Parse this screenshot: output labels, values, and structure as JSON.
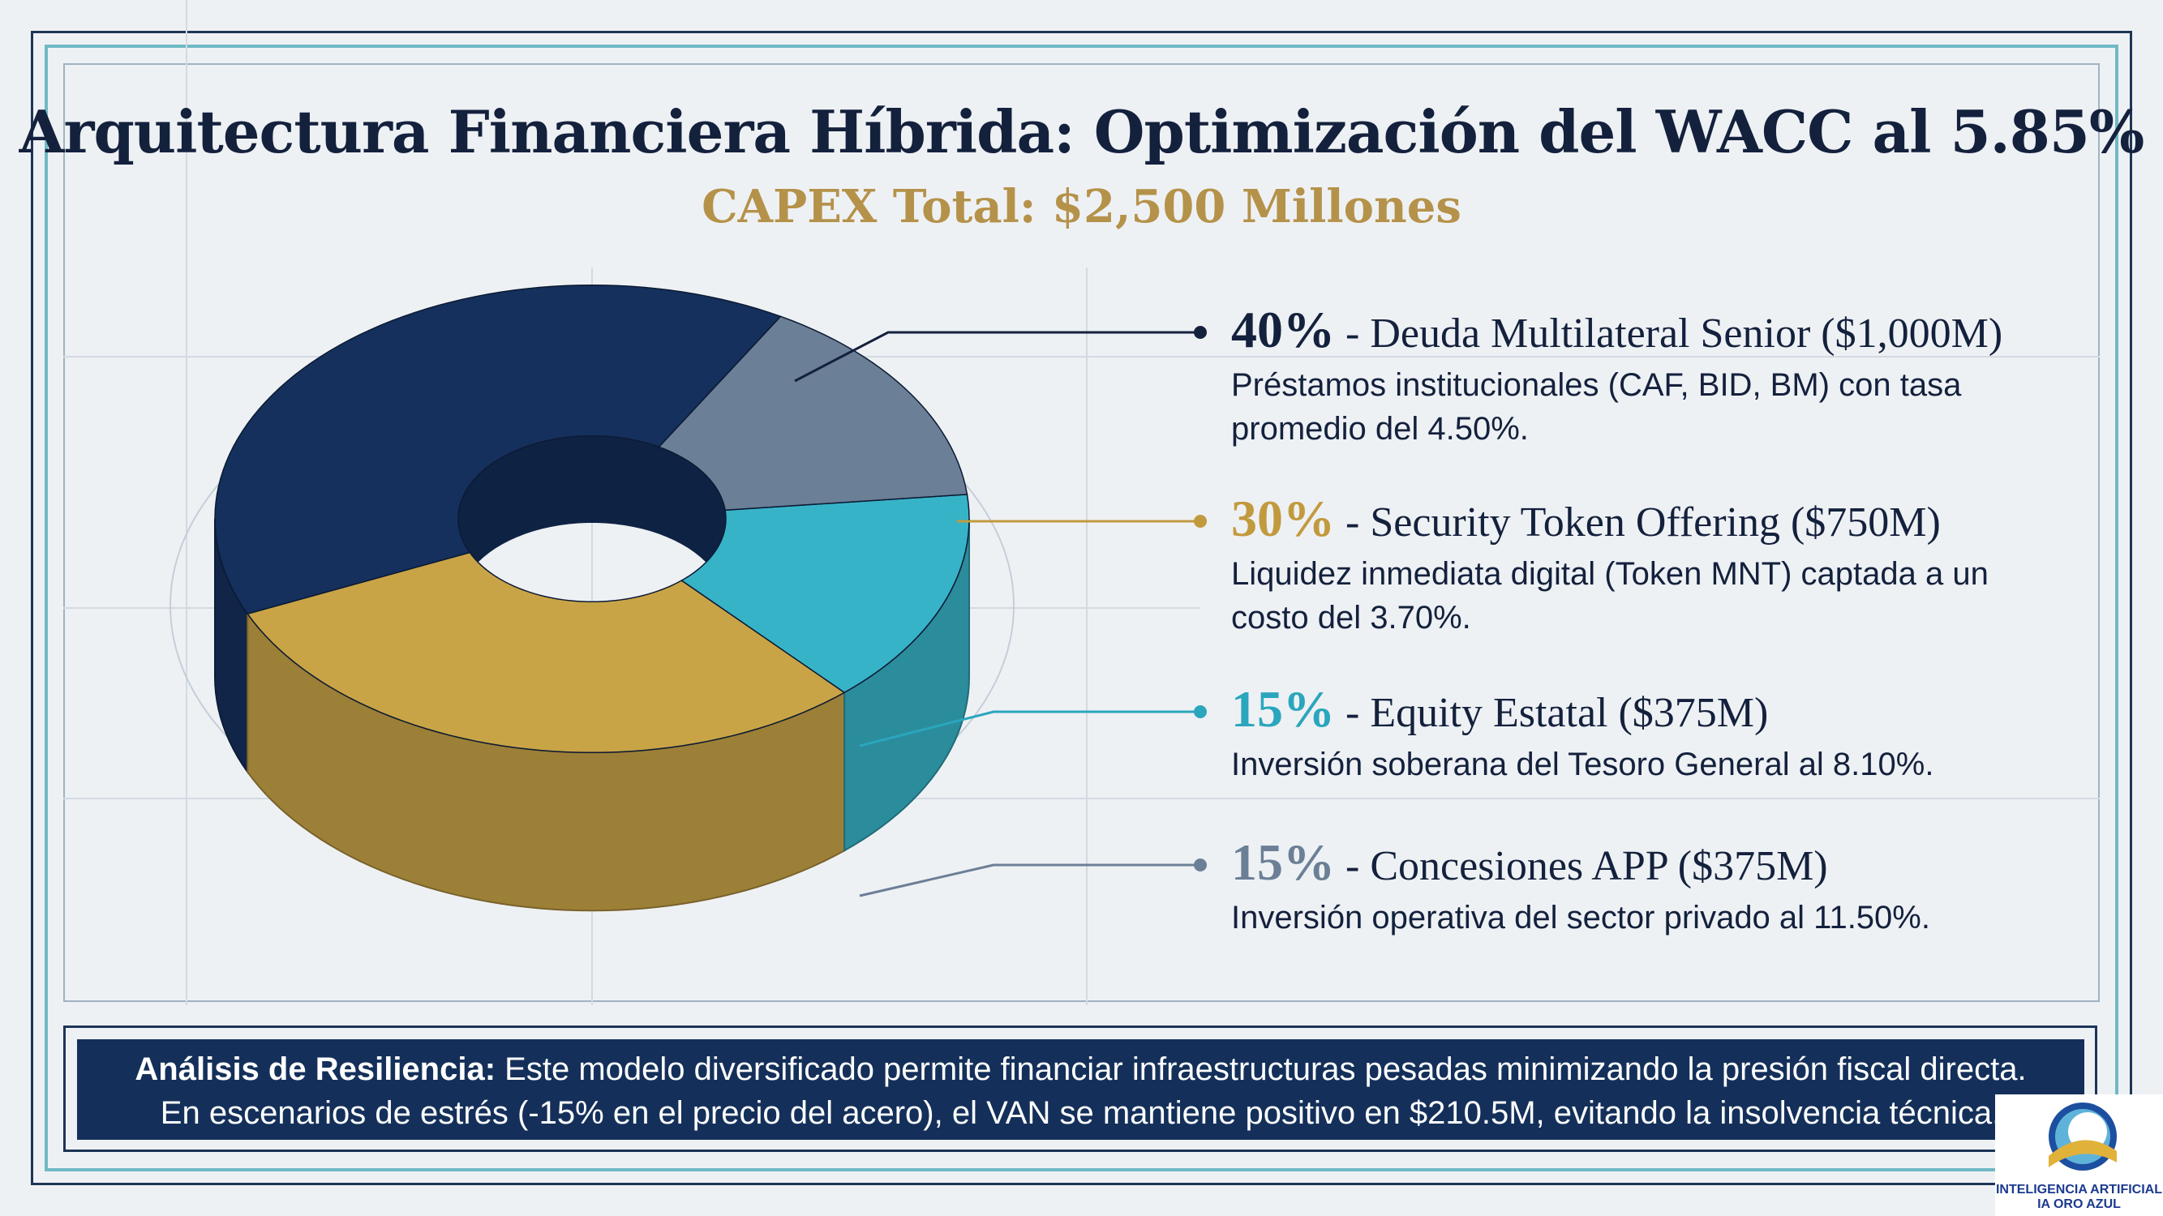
{
  "title": "Arquitectura Financiera Híbrida: Optimización del WACC al 5.85%",
  "subtitle": "CAPEX Total: $2,500 Millones",
  "chart_data": {
    "type": "pie",
    "style": "3d-donut",
    "slices": [
      {
        "percent": 40,
        "label": "Deuda Multilateral Senior ($1,000M)",
        "value_musd": 1000,
        "color": "#15305c",
        "description": "Préstamos institucionales (CAF, BID, BM) con tasa promedio del 4.50%."
      },
      {
        "percent": 30,
        "label": "Security Token Offering ($750M)",
        "value_musd": 750,
        "color": "#c9a447",
        "description": "Liquidez inmediata digital (Token MNT) captada a un costo del 3.70%."
      },
      {
        "percent": 15,
        "label": "Equity Estatal ($375M)",
        "value_musd": 375,
        "color": "#37b3c8",
        "description": "Inversión soberana del Tesoro General al 8.10%."
      },
      {
        "percent": 15,
        "label": "Concesiones APP ($375M)",
        "value_musd": 375,
        "color": "#6b7f96",
        "description": "Inversión operativa del sector privado al 11.50%."
      }
    ],
    "legend_placement": "right"
  },
  "legend": [
    {
      "pct": "40%",
      "head": " - Deuda Multilateral Senior ($1,000M)",
      "desc": "Préstamos institucionales (CAF, BID, BM) con tasa promedio del 4.50%.",
      "pct_color": "#14213d"
    },
    {
      "pct": "30%",
      "head": " - Security Token Offering ($750M)",
      "desc": "Liquidez inmediata digital (Token MNT) captada a un costo del 3.70%.",
      "pct_color": "#c29a3e"
    },
    {
      "pct": "15%",
      "head": " - Equity Estatal ($375M)",
      "desc": "Inversión soberana del Tesoro General al 8.10%.",
      "pct_color": "#2aa6bd"
    },
    {
      "pct": "15%",
      "head": " - Concesiones APP ($375M)",
      "desc": "Inversión operativa del sector privado al 11.50%.",
      "pct_color": "#6b7f96"
    }
  ],
  "banner": {
    "label": "Análisis de Resiliencia:",
    "line1": " Este modelo diversificado permite financiar infraestructuras pesadas minimizando la presión fiscal directa.",
    "line2": "En escenarios de estrés (-15% en el precio del acero), el VAN se mantiene positivo en $210.5M, evitando la insolvencia técnica."
  },
  "logo": {
    "line1": "INTELIGENCIA ARTIFICIAL",
    "line2": "IA ORO AZUL"
  }
}
